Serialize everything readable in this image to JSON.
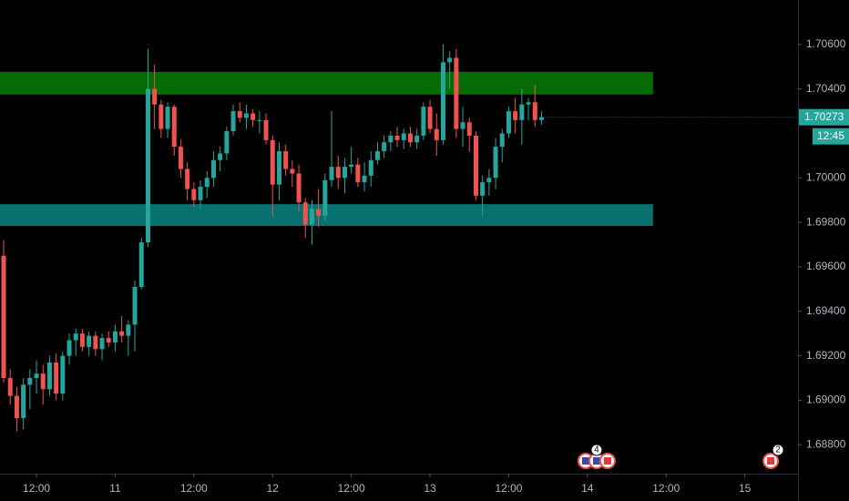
{
  "chart_data": {
    "type": "candlestick",
    "x": [
      7,
      8,
      9,
      10,
      11,
      12,
      13,
      14,
      15,
      16,
      17,
      18,
      19,
      20,
      21,
      22,
      23,
      24,
      25,
      26,
      27,
      28,
      29,
      30,
      31,
      32,
      33,
      34,
      35,
      36,
      37,
      38,
      39,
      40,
      41,
      42,
      43,
      44,
      45,
      46,
      47,
      48,
      49,
      50,
      51,
      52,
      53,
      54,
      55,
      56,
      57,
      58,
      59,
      60,
      61,
      62,
      63,
      64,
      65,
      66,
      67,
      68,
      69,
      70,
      71,
      72,
      73,
      74,
      75,
      76,
      77,
      78,
      79,
      80,
      81,
      82,
      83,
      84,
      85,
      86,
      87,
      88,
      89
    ],
    "open": [
      1.6965,
      1.691,
      1.6902,
      1.6892,
      1.6907,
      1.691,
      1.6912,
      1.6905,
      1.6917,
      1.6903,
      1.692,
      1.6927,
      1.693,
      1.6924,
      1.6929,
      1.6923,
      1.6928,
      1.6926,
      1.6931,
      1.6929,
      1.6934,
      1.6951,
      1.6971,
      1.704,
      1.7033,
      1.7022,
      1.7032,
      1.7014,
      1.7004,
      1.6995,
      1.699,
      1.6996,
      1.7,
      1.7008,
      1.7011,
      1.7021,
      1.703,
      1.7027,
      1.7029,
      1.7026,
      1.7026,
      1.7017,
      1.6997,
      1.7012,
      1.7004,
      1.7002,
      1.6989,
      1.6979,
      1.6986,
      1.6983,
      1.6999,
      1.7005,
      1.7,
      1.7005,
      1.7006,
      1.6998,
      1.7001,
      1.7008,
      1.7012,
      1.7016,
      1.7019,
      1.7017,
      1.702,
      1.7016,
      1.7019,
      1.7032,
      1.7022,
      1.7017,
      1.7052,
      1.7054,
      1.7022,
      1.7025,
      1.7019,
      1.6992,
      1.6998,
      1.7,
      1.7014,
      1.702,
      1.703,
      1.7026,
      1.7033,
      1.7034,
      1.7026
    ],
    "high": [
      1.6972,
      1.6914,
      1.6906,
      1.691,
      1.6914,
      1.6918,
      1.6916,
      1.692,
      1.6921,
      1.6922,
      1.693,
      1.6932,
      1.6932,
      1.6931,
      1.6931,
      1.693,
      1.6931,
      1.6934,
      1.6938,
      1.6936,
      1.6954,
      1.6973,
      1.7058,
      1.7051,
      1.7035,
      1.7034,
      1.7033,
      1.7017,
      1.7007,
      1.6998,
      1.6999,
      1.7003,
      1.7012,
      1.7014,
      1.7023,
      1.7033,
      1.7034,
      1.7033,
      1.7031,
      1.703,
      1.7029,
      1.7019,
      1.7016,
      1.7015,
      1.7008,
      1.7006,
      1.6991,
      1.699,
      1.6995,
      1.7002,
      1.703,
      1.701,
      1.7009,
      1.7014,
      1.7009,
      1.7007,
      1.7012,
      1.7016,
      1.7019,
      1.7021,
      1.7023,
      1.7022,
      1.7023,
      1.7022,
      1.7034,
      1.7035,
      1.7029,
      1.706,
      1.7057,
      1.7058,
      1.7032,
      1.7027,
      1.7021,
      1.7001,
      1.7004,
      1.7018,
      1.7022,
      1.7032,
      1.7036,
      1.704,
      1.7036,
      1.7042,
      1.703
    ],
    "low": [
      1.6908,
      1.6898,
      1.6886,
      1.6887,
      1.6896,
      1.6903,
      1.6898,
      1.6902,
      1.69,
      1.69,
      1.6916,
      1.692,
      1.6922,
      1.692,
      1.692,
      1.6918,
      1.6924,
      1.6922,
      1.6926,
      1.692,
      1.6922,
      1.695,
      1.6969,
      1.7022,
      1.7018,
      1.7018,
      1.701,
      1.7,
      1.699,
      1.6987,
      1.6986,
      1.6991,
      1.6996,
      1.7003,
      1.7008,
      1.7019,
      1.7025,
      1.7022,
      1.7023,
      1.702,
      1.7015,
      1.6983,
      1.699,
      1.7001,
      1.6996,
      1.6985,
      1.6973,
      1.697,
      1.6978,
      1.6981,
      1.6996,
      1.6995,
      1.6993,
      1.7002,
      1.6996,
      1.6994,
      1.6996,
      1.7006,
      1.7009,
      1.7012,
      1.7014,
      1.7013,
      1.7014,
      1.7013,
      1.7017,
      1.702,
      1.701,
      1.7015,
      1.704,
      1.7018,
      1.7014,
      1.7012,
      1.699,
      1.6983,
      1.6992,
      1.6995,
      1.7007,
      1.7018,
      1.702,
      1.7015,
      1.7026,
      1.7023,
      1.7024
    ],
    "close": [
      1.691,
      1.6902,
      1.6892,
      1.6907,
      1.691,
      1.6912,
      1.6905,
      1.6917,
      1.6903,
      1.692,
      1.6927,
      1.693,
      1.6924,
      1.6929,
      1.6923,
      1.6928,
      1.6926,
      1.6931,
      1.6929,
      1.6934,
      1.6951,
      1.6971,
      1.704,
      1.7033,
      1.7022,
      1.7032,
      1.7014,
      1.7004,
      1.6995,
      1.699,
      1.6996,
      1.7,
      1.7008,
      1.7011,
      1.7021,
      1.703,
      1.7027,
      1.7029,
      1.7026,
      1.7026,
      1.7017,
      1.6997,
      1.7012,
      1.7004,
      1.7002,
      1.6989,
      1.6979,
      1.6986,
      1.6983,
      1.6999,
      1.7005,
      1.7,
      1.7005,
      1.7006,
      1.6998,
      1.7001,
      1.7008,
      1.7012,
      1.7016,
      1.7019,
      1.7017,
      1.702,
      1.7016,
      1.7019,
      1.7032,
      1.7022,
      1.7017,
      1.7052,
      1.7054,
      1.7022,
      1.7025,
      1.7019,
      1.6992,
      1.6998,
      1.7,
      1.7014,
      1.702,
      1.703,
      1.7026,
      1.7033,
      1.7034,
      1.7026,
      1.70273
    ],
    "up_color": "#26a69a",
    "down_color": "#ef5350",
    "xlim": [
      6.44,
      128.1
    ],
    "ylim": [
      1.6867,
      1.708
    ],
    "xticks": [
      {
        "value": 12,
        "label": "12:00"
      },
      {
        "value": 24,
        "label": "11"
      },
      {
        "value": 36,
        "label": "12:00"
      },
      {
        "value": 48,
        "label": "12"
      },
      {
        "value": 60,
        "label": "12:00"
      },
      {
        "value": 72,
        "label": "13"
      },
      {
        "value": 84,
        "label": "12:00"
      },
      {
        "value": 96,
        "label": "14"
      },
      {
        "value": 108,
        "label": "12:00"
      },
      {
        "value": 120,
        "label": "15"
      }
    ],
    "yticks": [
      {
        "value": 1.706,
        "label": "1.70600"
      },
      {
        "value": 1.704,
        "label": "1.70400"
      },
      {
        "value": 1.7,
        "label": "1.70000"
      },
      {
        "value": 1.698,
        "label": "1.69800"
      },
      {
        "value": 1.696,
        "label": "1.69600"
      },
      {
        "value": 1.694,
        "label": "1.69400"
      },
      {
        "value": 1.692,
        "label": "1.69200"
      },
      {
        "value": 1.69,
        "label": "1.69000"
      },
      {
        "value": 1.688,
        "label": "1.68800"
      }
    ],
    "zones": [
      {
        "low": 1.70375,
        "high": 1.70477,
        "x_end": 106.0,
        "color": "#056b05"
      },
      {
        "low": 1.69784,
        "high": 1.69882,
        "x_end": 106.0,
        "color": "#08706f"
      }
    ],
    "countdown": "12:45",
    "events": [
      {
        "x": 97.4,
        "count": 4
      },
      {
        "x": 124.5,
        "count": 2
      }
    ]
  }
}
